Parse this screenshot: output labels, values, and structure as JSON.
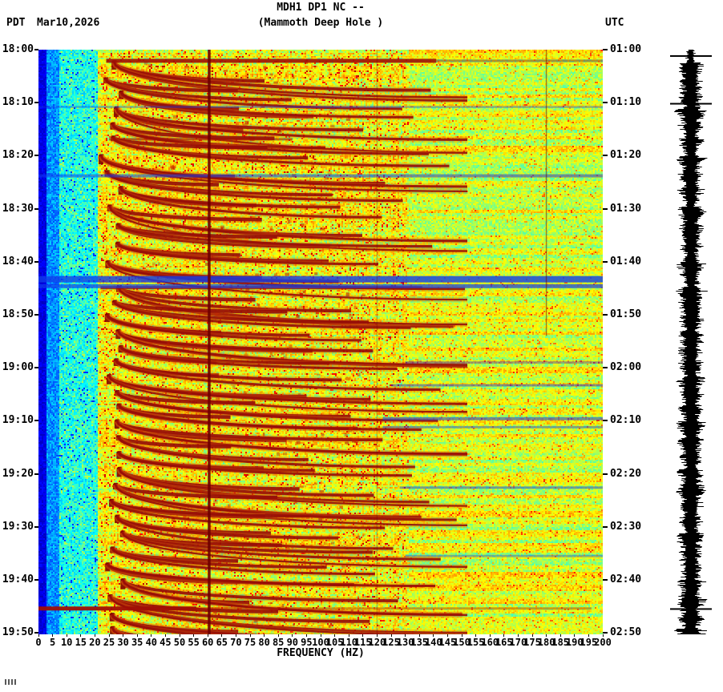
{
  "header": {
    "tz_left": "PDT",
    "date": "Mar10,2026",
    "title": "MDH1 DP1 NC --",
    "subtitle": "(Mammoth Deep Hole )",
    "tz_right": "UTC"
  },
  "axes": {
    "left_times": [
      "18:00",
      "18:10",
      "18:20",
      "18:30",
      "18:40",
      "18:50",
      "19:00",
      "19:10",
      "19:20",
      "19:30",
      "19:40",
      "19:50"
    ],
    "right_times": [
      "01:00",
      "01:10",
      "01:20",
      "01:30",
      "01:40",
      "01:50",
      "02:00",
      "02:10",
      "02:20",
      "02:30",
      "02:40",
      "02:50"
    ],
    "freq_ticks": [
      0,
      5,
      10,
      15,
      20,
      25,
      30,
      35,
      40,
      45,
      50,
      55,
      60,
      65,
      70,
      75,
      80,
      85,
      90,
      95,
      100,
      105,
      110,
      115,
      120,
      125,
      130,
      135,
      140,
      145,
      150,
      155,
      160,
      165,
      170,
      175,
      180,
      185,
      190,
      195,
      200
    ],
    "xlabel": "FREQUENCY (HZ)"
  },
  "chart_data": {
    "type": "heatmap",
    "title": "MDH1 DP1 NC --",
    "subtitle": "(Mammoth Deep Hole )",
    "station": "MDH1 DP1 NC",
    "date": "Mar10,2026",
    "x_axis": {
      "label": "FREQUENCY (HZ)",
      "min": 0,
      "max": 200,
      "tick_step": 5
    },
    "y_axis_left": {
      "timezone": "PDT",
      "start": "18:00",
      "end": "19:50",
      "tick_step_min": 10
    },
    "y_axis_right": {
      "timezone": "UTC",
      "start": "01:00",
      "end": "02:50",
      "tick_step_min": 10
    },
    "colormap": "jet",
    "events": [
      [
        2.3,
        1
      ],
      [
        5.5,
        0.5
      ],
      [
        8,
        0.6
      ],
      [
        11,
        0.9
      ],
      [
        14,
        0.5
      ],
      [
        16.5,
        0.6
      ],
      [
        20,
        0.9
      ],
      [
        23,
        0.6
      ],
      [
        26,
        0.5
      ],
      [
        29.5,
        1
      ],
      [
        33,
        0.6
      ],
      [
        36.5,
        0.5
      ],
      [
        40,
        0.9
      ],
      [
        44.8,
        1
      ],
      [
        47.5,
        0.6
      ],
      [
        50,
        0.5
      ],
      [
        53,
        0.9
      ],
      [
        56,
        0.5
      ],
      [
        58.5,
        0.6
      ],
      [
        61.5,
        0.9
      ],
      [
        64.5,
        0.5
      ],
      [
        67,
        0.6
      ],
      [
        70,
        0.9
      ],
      [
        73,
        0.6
      ],
      [
        76,
        0.5
      ],
      [
        79,
        0.8
      ],
      [
        82,
        1
      ],
      [
        85,
        0.5
      ],
      [
        88,
        0.6
      ],
      [
        91,
        0.9
      ],
      [
        94,
        0.5
      ],
      [
        97,
        0.6
      ],
      [
        100,
        0.8
      ],
      [
        103,
        0.9
      ],
      [
        106.5,
        0.6
      ],
      [
        109,
        0.8
      ]
    ],
    "quiet_bands": [
      {
        "m": 10.8,
        "h": 3,
        "f0": 0,
        "f1": 200,
        "a": 0.35
      },
      {
        "m": 23.8,
        "h": 4,
        "f0": 0,
        "f1": 200,
        "a": 0.55
      },
      {
        "m": 43.3,
        "h": 8,
        "f0": 0,
        "f1": 200,
        "a": 0.8
      },
      {
        "m": 44.6,
        "h": 5,
        "f0": 0,
        "f1": 200,
        "a": 0.7
      },
      {
        "m": 59.0,
        "h": 3,
        "f0": 130,
        "f1": 200,
        "a": 0.4
      },
      {
        "m": 63.3,
        "h": 3,
        "f0": 125,
        "f1": 200,
        "a": 0.5
      },
      {
        "m": 69.6,
        "h": 4,
        "f0": 122,
        "f1": 200,
        "a": 0.55
      },
      {
        "m": 71.2,
        "h": 3,
        "f0": 122,
        "f1": 200,
        "a": 0.45
      },
      {
        "m": 82.6,
        "h": 3,
        "f0": 128,
        "f1": 200,
        "a": 0.5
      },
      {
        "m": 95.5,
        "h": 3,
        "f0": 130,
        "f1": 200,
        "a": 0.4
      }
    ],
    "red_bands": [
      {
        "m": 2.1,
        "h": 5,
        "f0": 24,
        "f1": 141,
        "a": 0.9
      },
      {
        "m": 2.1,
        "h": 3,
        "f0": 141,
        "f1": 200,
        "a": 0.45
      },
      {
        "m": 16.9,
        "h": 3,
        "f0": 25,
        "f1": 90,
        "a": 0.6
      },
      {
        "m": 44.9,
        "h": 4,
        "f0": 22,
        "f1": 136,
        "a": 0.8
      },
      {
        "m": 105.4,
        "h": 5,
        "f0": 0,
        "f1": 56,
        "a": 0.95
      },
      {
        "m": 105.4,
        "h": 3,
        "f0": 56,
        "f1": 196,
        "a": 0.4
      }
    ],
    "mains_lines": [
      {
        "f": 60.5,
        "w": 3.5,
        "a": 0.9,
        "m0": 0,
        "m1": 110.3
      },
      {
        "f": 120,
        "w": 1.5,
        "a": 0.28,
        "m0": 0,
        "m1": 110.3
      },
      {
        "f": 180,
        "w": 1.5,
        "a": 0.5,
        "m0": 0,
        "m1": 54
      }
    ],
    "trace_marks_min": [
      1.2,
      10.2,
      105.5
    ]
  }
}
